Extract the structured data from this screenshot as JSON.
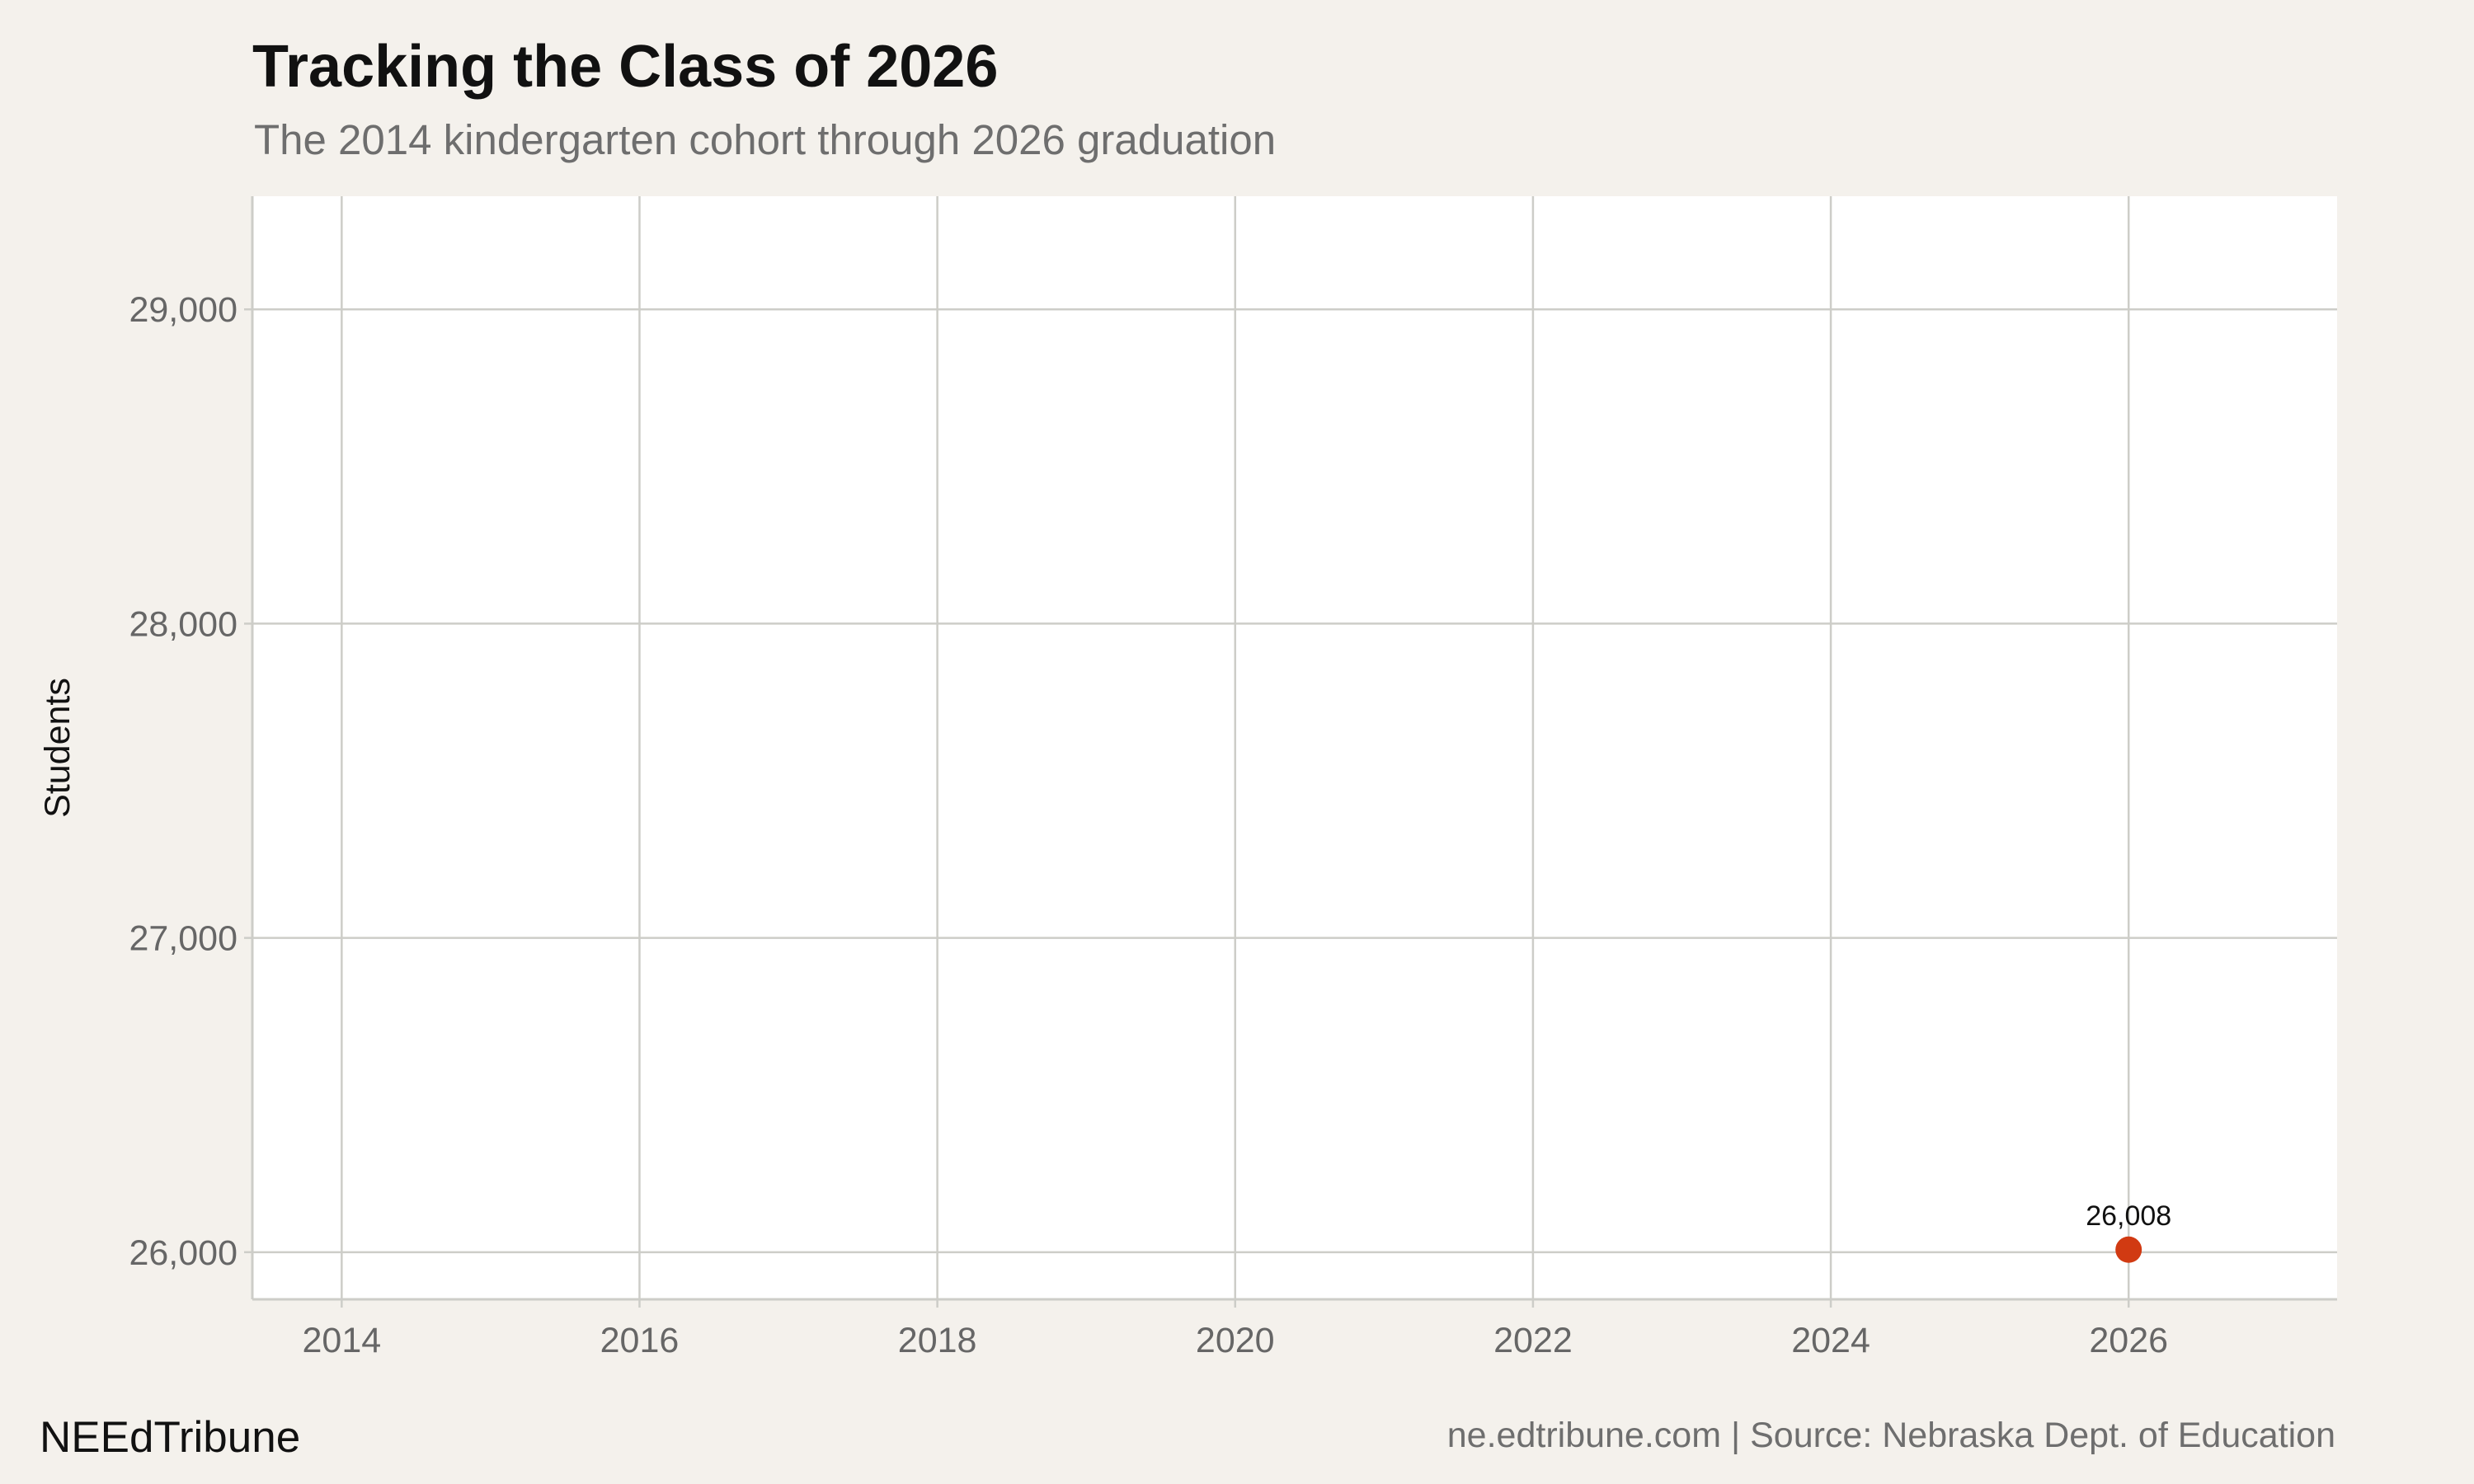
{
  "header": {
    "title": "Tracking the Class of 2026",
    "subtitle": "The 2014 kindergarten cohort through 2026 graduation"
  },
  "footer": {
    "brand": "NEEdTribune",
    "source": "ne.edtribune.com | Source: Nebraska Dept. of Education"
  },
  "colors": {
    "background": "#f4f1ec",
    "panel": "#ffffff",
    "grid": "#cdcdc8",
    "point": "#d13a12"
  },
  "chart_data": {
    "type": "scatter",
    "title": "Tracking the Class of 2026",
    "subtitle": "The 2014 kindergarten cohort through 2026 graduation",
    "xlabel": "",
    "ylabel": "Students",
    "xlim": [
      2013.4,
      2027.4
    ],
    "ylim": [
      25850,
      29360
    ],
    "x_ticks": [
      2014,
      2016,
      2018,
      2020,
      2022,
      2024,
      2026
    ],
    "y_ticks": [
      26000,
      27000,
      28000,
      29000
    ],
    "y_tick_labels": [
      "26,000",
      "27,000",
      "28,000",
      "29,000"
    ],
    "grid": true,
    "points": [
      {
        "x": 2026,
        "y": 26008,
        "label": "26,008"
      }
    ]
  }
}
